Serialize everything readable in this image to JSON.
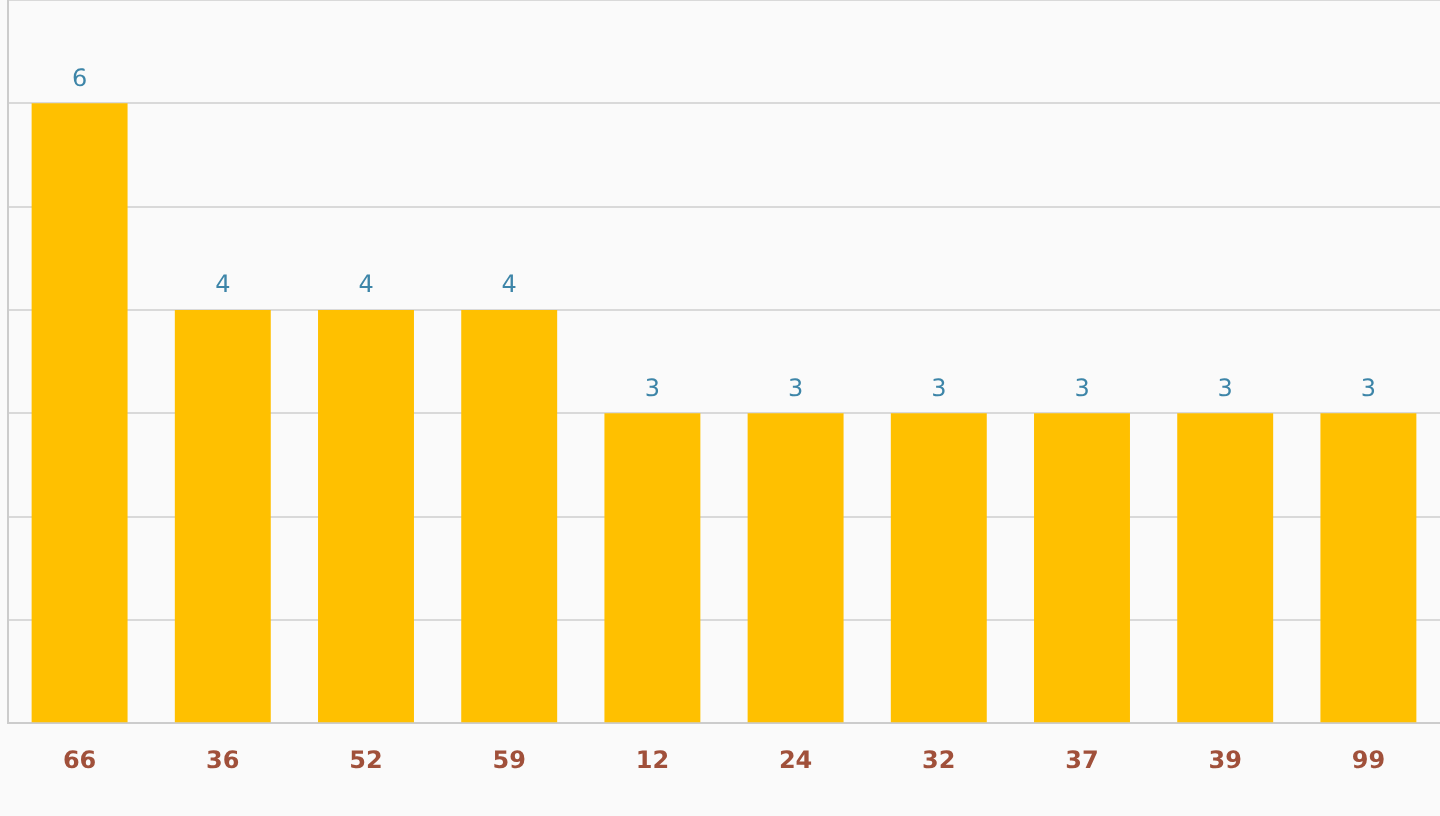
{
  "chart_data": {
    "type": "bar",
    "categories": [
      "66",
      "36",
      "52",
      "59",
      "12",
      "24",
      "32",
      "37",
      "39",
      "99"
    ],
    "values": [
      6,
      4,
      4,
      4,
      3,
      3,
      3,
      3,
      3,
      3
    ],
    "color": "#ffc000",
    "ylim": [
      0,
      7
    ],
    "yticks": [
      {
        "value": 0,
        "label": null
      },
      {
        "value": 1,
        "label": null
      },
      {
        "value": 2,
        "label": null
      },
      {
        "value": 3,
        "label": null
      },
      {
        "value": 4,
        "label": null
      },
      {
        "value": 5,
        "label": null
      },
      {
        "value": 6,
        "label": null
      },
      {
        "value": 7,
        "label": null
      }
    ],
    "tick_labels": "x",
    "grid": "y",
    "data_labels": true,
    "legend": false
  }
}
